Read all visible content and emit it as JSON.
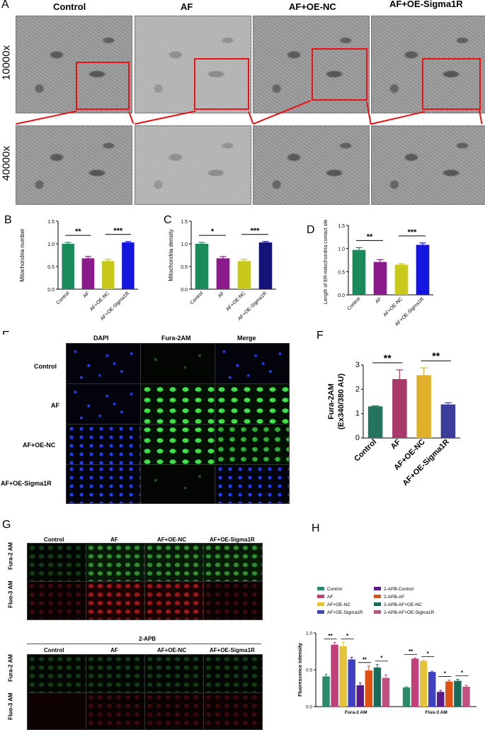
{
  "panel_labels": {
    "A": "A",
    "B": "B",
    "C": "C",
    "D": "D",
    "E": "E",
    "F": "F",
    "G": "G",
    "H": "H"
  },
  "panelA": {
    "columns": [
      "Control",
      "AF",
      "AF+OE-NC",
      "AF+OE-Sigma1R"
    ],
    "rows": [
      "10000x",
      "40000x"
    ]
  },
  "chart_data": [
    {
      "panel": "B",
      "type": "bar",
      "categories": [
        "Control",
        "AF",
        "AF+OE-NC",
        "AF+OE-Sigma1R"
      ],
      "values": [
        1.0,
        0.68,
        0.62,
        1.03
      ],
      "errors": [
        0.03,
        0.04,
        0.04,
        0.02
      ],
      "colors": [
        "#1b8a5a",
        "#8b1a8b",
        "#c9c91b",
        "#1515e0"
      ],
      "ylabel": "Mitochondria number",
      "ylim": [
        0,
        1.5
      ],
      "yticks": [
        "0.0",
        "0.5",
        "1.0",
        "1.5"
      ],
      "sig": [
        {
          "from": 0,
          "to": 1,
          "label": "**"
        },
        {
          "from": 2,
          "to": 3,
          "label": "***"
        }
      ]
    },
    {
      "panel": "C",
      "type": "bar",
      "categories": [
        "Control",
        "AF",
        "AF+OE-NC",
        "AF+OE-Sigma1R"
      ],
      "values": [
        1.0,
        0.68,
        0.62,
        1.03
      ],
      "errors": [
        0.03,
        0.04,
        0.04,
        0.02
      ],
      "colors": [
        "#1b8a5a",
        "#8b1a8b",
        "#c9c91b",
        "#13137a"
      ],
      "ylabel": "Mitochondria density",
      "ylim": [
        0,
        1.5
      ],
      "yticks": [
        "0.0",
        "0.5",
        "1.0",
        "1.5"
      ],
      "sig": [
        {
          "from": 0,
          "to": 1,
          "label": "*"
        },
        {
          "from": 2,
          "to": 3,
          "label": "***"
        }
      ]
    },
    {
      "panel": "D",
      "type": "bar",
      "categories": [
        "Control",
        "AF",
        "AF+OE-NC",
        "AF+OE-Sigma1R"
      ],
      "values": [
        0.97,
        0.71,
        0.65,
        1.08
      ],
      "errors": [
        0.05,
        0.05,
        0.02,
        0.04
      ],
      "colors": [
        "#1b8a5a",
        "#8b1a8b",
        "#c9c91b",
        "#1515e0"
      ],
      "ylabel": "Length of ER-mitochondria contact sites",
      "ylim": [
        0,
        1.5
      ],
      "yticks": [
        "0.0",
        "0.5",
        "1.0",
        "1.5"
      ],
      "sig": [
        {
          "from": 0,
          "to": 1,
          "label": "**"
        },
        {
          "from": 2,
          "to": 3,
          "label": "***"
        }
      ]
    },
    {
      "panel": "F",
      "type": "bar",
      "categories": [
        "Control",
        "AF",
        "AF+OE-NC",
        "AF+OE-Sigma1R"
      ],
      "values": [
        1.3,
        2.42,
        2.58,
        1.38
      ],
      "errors": [
        0.02,
        0.38,
        0.3,
        0.07
      ],
      "colors": [
        "#23735f",
        "#a83a6b",
        "#e0b02a",
        "#3b3f9b"
      ],
      "ylabel": "Fura-2AM\n(Ex340/380 AU)",
      "ylim": [
        0,
        3
      ],
      "yticks": [
        "0",
        "1",
        "2",
        "3"
      ],
      "sig": [
        {
          "from": 0,
          "to": 1,
          "label": "**"
        },
        {
          "from": 2,
          "to": 3,
          "label": "**"
        }
      ]
    },
    {
      "panel": "H",
      "type": "bar",
      "categories": [
        "Fura-2 AM",
        "Fluo-3 AM"
      ],
      "ylabel": "Fluorescence intensity",
      "ylim": [
        0,
        1.0
      ],
      "yticks": [
        "0.0",
        "0.5",
        "1.0"
      ],
      "series": [
        {
          "name": "Control",
          "color": "#2a8a6a",
          "values": [
            0.41,
            0.26
          ]
        },
        {
          "name": "AF",
          "color": "#c0407a",
          "values": [
            0.84,
            0.65
          ]
        },
        {
          "name": "AF+OE-NC",
          "color": "#e6c23a",
          "values": [
            0.82,
            0.62
          ]
        },
        {
          "name": "AF+OE-Sigma1R",
          "color": "#4040c0",
          "values": [
            0.64,
            0.47
          ]
        },
        {
          "name": "2-APB-Control",
          "color": "#5a1a8a",
          "values": [
            0.29,
            0.2
          ]
        },
        {
          "name": "2-APB-AF",
          "color": "#e05010",
          "values": [
            0.49,
            0.34
          ]
        },
        {
          "name": "2-APB-AF+OE-NC",
          "color": "#1a6a5a",
          "values": [
            0.53,
            0.35
          ]
        },
        {
          "name": "2-APB-AF+OE-Sigma1R",
          "color": "#c05080",
          "values": [
            0.39,
            0.27
          ]
        }
      ],
      "errors": [
        [
          0.03,
          0.03,
          0.05,
          0.03,
          0.03,
          0.06,
          0.04,
          0.04
        ],
        [
          0.01,
          0.01,
          0.01,
          0.01,
          0.02,
          0.02,
          0.02,
          0.02
        ]
      ],
      "sig": [
        {
          "group": 0,
          "from": 0,
          "to": 1,
          "label": "**"
        },
        {
          "group": 0,
          "from": 2,
          "to": 3,
          "label": "*"
        },
        {
          "group": 0,
          "from": 4,
          "to": 5,
          "label": "**"
        },
        {
          "group": 0,
          "from": 6,
          "to": 7,
          "label": "*"
        },
        {
          "group": 1,
          "from": 0,
          "to": 1,
          "label": "**"
        },
        {
          "group": 1,
          "from": 2,
          "to": 3,
          "label": "*"
        },
        {
          "group": 1,
          "from": 4,
          "to": 5,
          "label": "*"
        },
        {
          "group": 1,
          "from": 6,
          "to": 7,
          "label": "*"
        }
      ]
    }
  ],
  "panelE": {
    "columns": [
      "DAPI",
      "Fura-2AM",
      "Merge"
    ],
    "rows": [
      "Control",
      "AF",
      "AF+OE-NC",
      "AF+OE-Sigma1R"
    ]
  },
  "panelG": {
    "columns": [
      "Control",
      "AF",
      "AF+OE-NC",
      "AF+OE-Sigma1R"
    ],
    "rows": [
      "Fura-2 AM",
      "Fluo-3 AM"
    ],
    "treatment_label": "2-APB"
  }
}
